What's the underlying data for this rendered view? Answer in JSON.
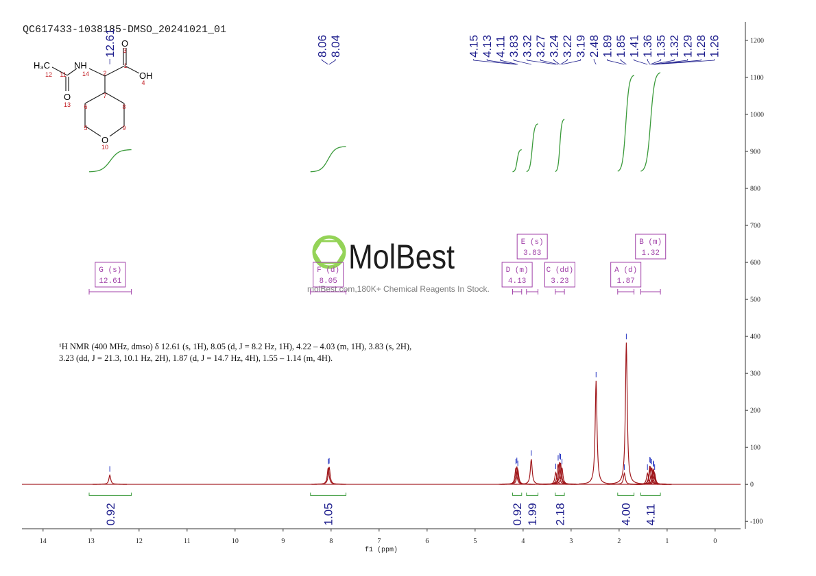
{
  "title": "QC617433-1038185-DMSO_20241021_01",
  "structure": {
    "atoms": [
      "H₃C",
      "NH",
      "O",
      "OH",
      "O",
      "O"
    ],
    "locants": [
      "12",
      "14",
      "11",
      "13",
      "2",
      "3",
      "1",
      "4",
      "7",
      "6",
      "8",
      "5",
      "9",
      "10"
    ]
  },
  "watermark": {
    "brand": "MolBest",
    "tagline": "molBest.com,180K+ Chemical Reagents In Stock."
  },
  "chart_data": {
    "type": "nmr",
    "xlabel": "f1 (ppm)",
    "xlim": [
      14.44,
      -0.53
    ],
    "xticks": [
      14,
      13,
      12,
      11,
      10,
      9,
      8,
      7,
      6,
      5,
      4,
      3,
      2,
      1,
      0
    ],
    "ylim": [
      -120,
      1250
    ],
    "yticks": [
      -100,
      0,
      100,
      200,
      300,
      400,
      500,
      600,
      700,
      800,
      900,
      1000,
      1100,
      1200
    ],
    "line_color": "#a0181c",
    "peaks": {
      "x": [
        12.61,
        8.06,
        8.04,
        4.15,
        4.13,
        4.11,
        3.83,
        3.32,
        3.27,
        3.24,
        3.22,
        3.19,
        2.48,
        1.89,
        1.85,
        1.41,
        1.36,
        1.35,
        1.32,
        1.29,
        1.28,
        1.26
      ],
      "values": [
        25,
        45,
        47,
        45,
        48,
        40,
        68,
        32,
        55,
        60,
        58,
        45,
        280,
        30,
        383,
        30,
        50,
        48,
        45,
        40,
        38,
        30
      ]
    },
    "multiplets": [
      {
        "label": "G (s)",
        "shift": 12.61,
        "range": [
          13.04,
          12.16
        ]
      },
      {
        "label": "F (d)",
        "shift": 8.05,
        "range": [
          8.43,
          7.69
        ]
      },
      {
        "label": "D (m)",
        "shift": 4.13,
        "range": [
          4.22,
          4.03
        ]
      },
      {
        "label": "E (s)",
        "shift": 3.83,
        "range": [
          3.93,
          3.69
        ]
      },
      {
        "label": "C (dd)",
        "shift": 3.23,
        "range": [
          3.33,
          3.14
        ]
      },
      {
        "label": "A (d)",
        "shift": 1.87,
        "range": [
          2.03,
          1.69
        ]
      },
      {
        "label": "B (m)",
        "shift": 1.32,
        "range": [
          1.55,
          1.14
        ]
      }
    ],
    "integrals": {
      "ranges": [
        [
          13.04,
          12.16
        ],
        [
          8.43,
          7.69
        ],
        [
          4.22,
          4.03
        ],
        [
          3.93,
          3.69
        ],
        [
          3.33,
          3.14
        ],
        [
          2.03,
          1.69
        ],
        [
          1.55,
          1.14
        ]
      ],
      "values": [
        0.92,
        1.05,
        0.92,
        1.99,
        2.18,
        4,
        4.11
      ],
      "value_labels": [
        "0.92",
        "1.05",
        "0.92",
        "1.99",
        "2.18",
        "4.00",
        "4.11"
      ]
    },
    "description": [
      "¹H NMR (400 MHz, dmso) δ 12.61 (s, 1H), 8.05 (d, J = 8.2 Hz, 1H), 4.22 – 4.03 (m, 1H), 3.83 (s, 2H),",
      "3.23 (dd, J = 21.3, 10.1 Hz, 2H), 1.87 (d, J = 14.7 Hz, 4H), 1.55 – 1.14 (m, 4H)."
    ]
  }
}
